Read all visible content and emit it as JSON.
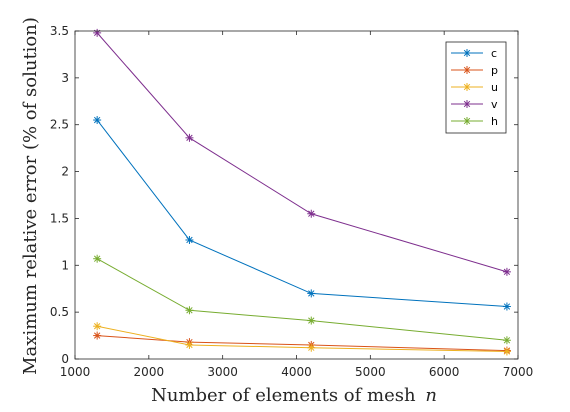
{
  "chart_data": {
    "type": "line",
    "xlabel": "Number of elements of mesh",
    "xlabel_var": "n",
    "ylabel": "Maximum relative error (% of solution)",
    "xlim": [
      1000,
      7000
    ],
    "ylim": [
      0,
      3.5
    ],
    "xticks": [
      1000,
      2000,
      3000,
      4000,
      5000,
      6000,
      7000
    ],
    "yticks": [
      0,
      0.5,
      1,
      1.5,
      2,
      2.5,
      3,
      3.5
    ],
    "xtick_labels": [
      "1000",
      "2000",
      "3000",
      "4000",
      "5000",
      "6000",
      "7000"
    ],
    "ytick_labels": [
      "0",
      "0.5",
      "1",
      "1.5",
      "2",
      "2.5",
      "3",
      "3.5"
    ],
    "grid": false,
    "legend_position": "top-right",
    "marker": "asterisk",
    "x": [
      1300,
      2550,
      4200,
      6850
    ],
    "series": [
      {
        "name": "c",
        "color": "#0072BD",
        "values": [
          2.55,
          1.27,
          0.7,
          0.56
        ]
      },
      {
        "name": "p",
        "color": "#D95319",
        "values": [
          0.25,
          0.18,
          0.15,
          0.09
        ]
      },
      {
        "name": "u",
        "color": "#EDB120",
        "values": [
          0.35,
          0.15,
          0.12,
          0.08
        ]
      },
      {
        "name": "v",
        "color": "#7E2F8E",
        "values": [
          3.48,
          2.36,
          1.55,
          0.93
        ]
      },
      {
        "name": "h",
        "color": "#77AC30",
        "values": [
          1.07,
          0.52,
          0.41,
          0.2
        ]
      }
    ]
  }
}
